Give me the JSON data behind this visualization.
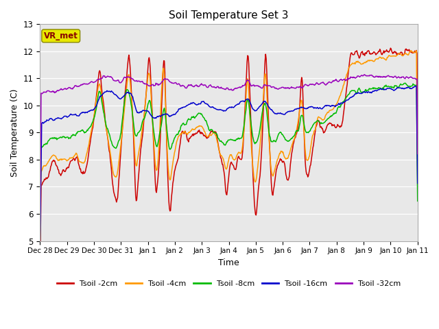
{
  "title": "Soil Temperature Set 3",
  "xlabel": "Time",
  "ylabel": "Soil Temperature (C)",
  "ylim": [
    5.0,
    13.0
  ],
  "yticks": [
    5.0,
    6.0,
    7.0,
    8.0,
    9.0,
    10.0,
    11.0,
    12.0,
    13.0
  ],
  "series_colors": [
    "#cc0000",
    "#ff9900",
    "#00bb00",
    "#0000cc",
    "#9900bb"
  ],
  "series_labels": [
    "Tsoil -2cm",
    "Tsoil -4cm",
    "Tsoil -8cm",
    "Tsoil -16cm",
    "Tsoil -32cm"
  ],
  "bg_color": "#e8e8e8",
  "fig_color": "#ffffff",
  "vr_met_box_color": "#e8e800",
  "vr_met_text_color": "#880000",
  "grid_color": "#ffffff"
}
